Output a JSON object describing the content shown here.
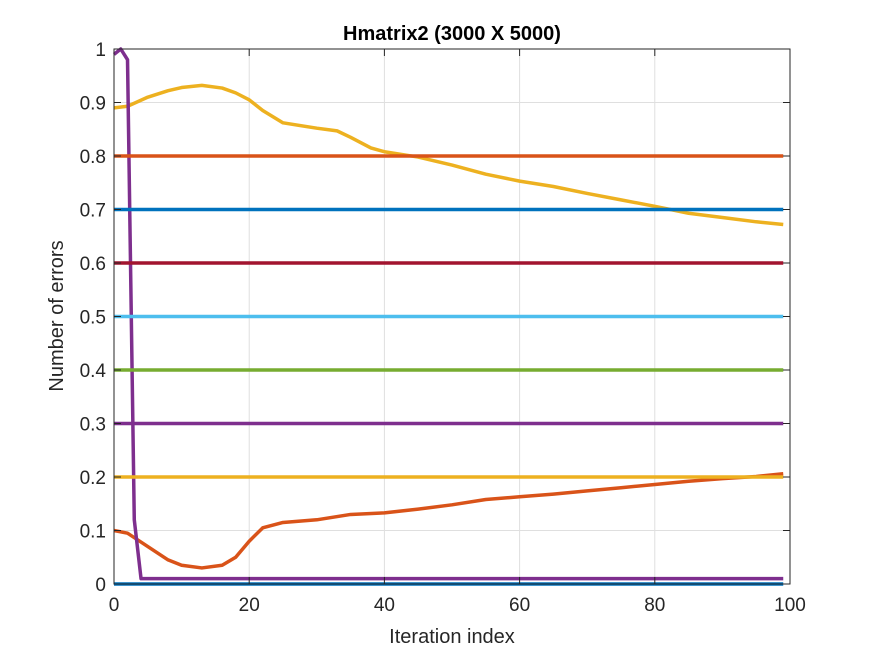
{
  "chart_data": {
    "type": "line",
    "title": "Hmatrix2 (3000 X 5000)",
    "xlabel": "Iteration index",
    "ylabel": "Number of errors",
    "xlim": [
      0,
      100
    ],
    "ylim": [
      0,
      1
    ],
    "xticks": [
      0,
      20,
      40,
      60,
      80,
      100
    ],
    "yticks": [
      0,
      0.1,
      0.2,
      0.3,
      0.4,
      0.5,
      0.6,
      0.7,
      0.8,
      0.9,
      1
    ],
    "xtick_labels": [
      "0",
      "20",
      "40",
      "60",
      "80",
      "100"
    ],
    "ytick_labels": [
      "0",
      "0.1",
      "0.2",
      "0.3",
      "0.4",
      "0.5",
      "0.6",
      "0.7",
      "0.8",
      "0.9",
      "1"
    ],
    "grid": true,
    "series": [
      {
        "color": "#0072BD",
        "x": [
          0,
          99
        ],
        "y": [
          0.0,
          0.0
        ]
      },
      {
        "color": "#D95319",
        "x": [
          0,
          2,
          5,
          8,
          10,
          13,
          16,
          18,
          20,
          22,
          25,
          30,
          35,
          40,
          45,
          50,
          55,
          60,
          65,
          70,
          75,
          80,
          85,
          90,
          95,
          99
        ],
        "y": [
          0.1,
          0.095,
          0.07,
          0.045,
          0.035,
          0.03,
          0.035,
          0.05,
          0.08,
          0.105,
          0.115,
          0.12,
          0.13,
          0.133,
          0.14,
          0.148,
          0.158,
          0.163,
          0.168,
          0.174,
          0.18,
          0.186,
          0.192,
          0.197,
          0.201,
          0.206
        ]
      },
      {
        "color": "#EDB120",
        "x": [
          0,
          2,
          5,
          8,
          10,
          13,
          16,
          18,
          20,
          22,
          25,
          30,
          33,
          35,
          38,
          40,
          45,
          50,
          55,
          60,
          65,
          70,
          75,
          80,
          85,
          90,
          95,
          99
        ],
        "y": [
          0.89,
          0.893,
          0.91,
          0.922,
          0.928,
          0.932,
          0.927,
          0.918,
          0.905,
          0.885,
          0.862,
          0.852,
          0.847,
          0.835,
          0.815,
          0.808,
          0.798,
          0.783,
          0.766,
          0.753,
          0.743,
          0.73,
          0.718,
          0.706,
          0.693,
          0.685,
          0.677,
          0.672
        ]
      },
      {
        "color": "#7E2F8E",
        "x": [
          0,
          1,
          2,
          3,
          4,
          99
        ],
        "y": [
          0.99,
          1.0,
          0.98,
          0.12,
          0.01,
          0.01
        ]
      },
      {
        "color": "#EDB120",
        "x": [
          0,
          99
        ],
        "y": [
          0.2,
          0.2
        ]
      },
      {
        "color": "#7E2F8E",
        "x": [
          0,
          99
        ],
        "y": [
          0.3,
          0.3
        ]
      },
      {
        "color": "#77AC30",
        "x": [
          0,
          99
        ],
        "y": [
          0.4,
          0.4
        ]
      },
      {
        "color": "#4DBEEE",
        "x": [
          0,
          99
        ],
        "y": [
          0.5,
          0.5
        ]
      },
      {
        "color": "#A2142F",
        "x": [
          0,
          99
        ],
        "y": [
          0.6,
          0.6
        ]
      },
      {
        "color": "#0072BD",
        "x": [
          0,
          99
        ],
        "y": [
          0.7,
          0.7
        ]
      },
      {
        "color": "#D95319",
        "x": [
          0,
          99
        ],
        "y": [
          0.8,
          0.8
        ]
      }
    ]
  }
}
